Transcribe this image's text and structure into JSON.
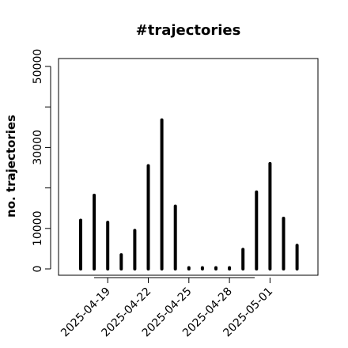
{
  "chart_data": {
    "type": "bar",
    "title": "#trajectories",
    "xlabel": "",
    "ylabel": "no. trajectories",
    "ylim": [
      0,
      50000
    ],
    "yticks": [
      0,
      10000,
      30000,
      50000
    ],
    "yticks_minor": [
      20000,
      40000
    ],
    "x_tick_labels": [
      "2025-04-19",
      "2025-04-22",
      "2025-04-25",
      "2025-04-28",
      "2025-05-01"
    ],
    "x": [
      "2025-04-17",
      "2025-04-18",
      "2025-04-19",
      "2025-04-20",
      "2025-04-21",
      "2025-04-22",
      "2025-04-23",
      "2025-04-24",
      "2025-04-25",
      "2025-04-26",
      "2025-04-27",
      "2025-04-28",
      "2025-04-29",
      "2025-04-30",
      "2025-05-01",
      "2025-05-02",
      "2025-05-03",
      "2025-05-04"
    ],
    "values": [
      12000,
      18200,
      11500,
      3500,
      9500,
      25500,
      36800,
      15500,
      300,
      300,
      300,
      300,
      4800,
      19000,
      26000,
      12500,
      5800,
      null
    ],
    "colors": {
      "bars": "#000000",
      "axis": "#000000",
      "background": "#ffffff"
    },
    "grid": false,
    "legend": "none"
  }
}
